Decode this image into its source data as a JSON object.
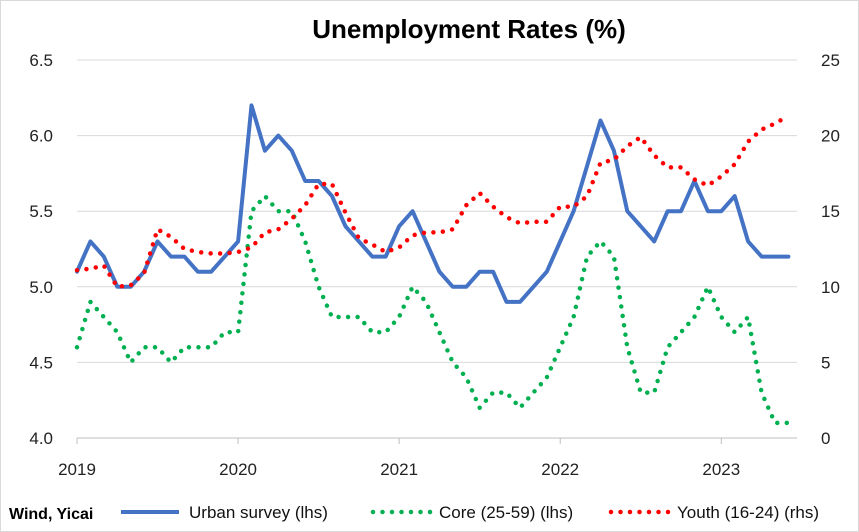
{
  "chart_data": {
    "type": "line",
    "title": "Unemployment Rates (%)",
    "source": "Wind, Yicai",
    "x_labels": [
      "2019",
      "2020",
      "2021",
      "2022",
      "2023"
    ],
    "x_range": [
      2019,
      2023.47
    ],
    "left_axis": {
      "ylim": [
        4.0,
        6.5
      ],
      "ticks": [
        "4.0",
        "4.5",
        "5.0",
        "5.5",
        "6.0",
        "6.5"
      ]
    },
    "right_axis": {
      "ylim": [
        0,
        25
      ],
      "ticks": [
        "0",
        "5",
        "10",
        "15",
        "20",
        "25"
      ]
    },
    "grid": true,
    "legend_position": "bottom",
    "colors": {
      "urban": "#4472c4",
      "core": "#00b050",
      "youth": "#ff0000"
    },
    "series": [
      {
        "name": "Urban survey (lhs)",
        "axis": "left",
        "style": "solid",
        "start": "2019-01",
        "values": [
          5.1,
          5.3,
          5.2,
          5.0,
          5.0,
          5.1,
          5.3,
          5.2,
          5.2,
          5.1,
          5.1,
          5.2,
          5.3,
          6.2,
          5.9,
          6.0,
          5.9,
          5.7,
          5.7,
          5.6,
          5.4,
          5.3,
          5.2,
          5.2,
          5.4,
          5.5,
          5.3,
          5.1,
          5.0,
          5.0,
          5.1,
          5.1,
          4.9,
          4.9,
          5.0,
          5.1,
          5.3,
          5.5,
          5.8,
          6.1,
          5.9,
          5.5,
          5.4,
          5.3,
          5.5,
          5.5,
          5.7,
          5.5,
          5.5,
          5.6,
          5.3,
          5.2,
          5.2,
          5.2
        ]
      },
      {
        "name": "Core (25-59) (lhs)",
        "axis": "left",
        "style": "dotted",
        "start": "2019-01",
        "values": [
          4.6,
          4.9,
          4.8,
          4.7,
          4.5,
          4.6,
          4.6,
          4.5,
          4.6,
          4.6,
          4.6,
          4.7,
          4.7,
          5.5,
          5.6,
          5.5,
          5.5,
          5.3,
          5.0,
          4.8,
          4.8,
          4.8,
          4.7,
          4.7,
          4.8,
          5.0,
          4.9,
          4.7,
          4.5,
          4.4,
          4.2,
          4.3,
          4.3,
          4.2,
          4.3,
          4.4,
          4.6,
          4.8,
          5.2,
          5.3,
          5.2,
          4.6,
          4.3,
          4.3,
          4.6,
          4.7,
          4.8,
          5.0,
          4.8,
          4.7,
          4.8,
          4.3,
          4.1,
          4.1
        ]
      },
      {
        "name": "Youth (16-24) (rhs)",
        "axis": "right",
        "style": "dotted",
        "start": "2019-01",
        "values": [
          11.1,
          11.2,
          11.4,
          10.0,
          10.1,
          10.9,
          13.8,
          13.3,
          12.5,
          12.3,
          12.2,
          12.2,
          12.3,
          12.6,
          13.6,
          13.8,
          14.5,
          15.4,
          16.8,
          16.8,
          14.9,
          13.2,
          12.8,
          12.3,
          12.6,
          13.4,
          13.6,
          13.6,
          13.8,
          15.4,
          16.2,
          15.3,
          14.6,
          14.2,
          14.3,
          14.3,
          15.3,
          15.3,
          16.0,
          18.2,
          18.4,
          19.3,
          19.9,
          18.7,
          17.9,
          17.9,
          17.1,
          16.7,
          17.3,
          18.1,
          19.6,
          20.4,
          20.8,
          21.3
        ]
      }
    ]
  }
}
